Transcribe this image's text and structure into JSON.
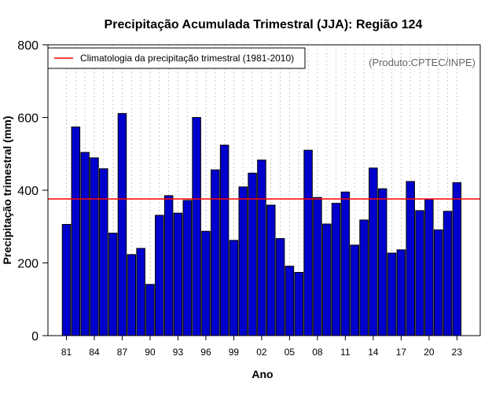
{
  "chart_data": {
    "type": "bar",
    "title": "Precipitação Acumulada Trimestral (JJA): Região 124",
    "xlabel": "Ano",
    "ylabel": "Precipitação trimestral (mm)",
    "ylim": [
      0,
      800
    ],
    "yticks": [
      0,
      200,
      400,
      600,
      800
    ],
    "grid": "vertical-dotted",
    "legend_position": "top-left",
    "legend_label": "Climatologia da precipitação trimestral (1981-2010)",
    "credit": "(Produto:CPTEC/INPE)",
    "climatology": 376,
    "xtick_labels": [
      "81",
      "84",
      "87",
      "90",
      "93",
      "96",
      "99",
      "02",
      "05",
      "08",
      "11",
      "14",
      "17",
      "20",
      "23"
    ],
    "categories": [
      "1981",
      "1982",
      "1983",
      "1984",
      "1985",
      "1986",
      "1987",
      "1988",
      "1989",
      "1990",
      "1991",
      "1992",
      "1993",
      "1994",
      "1995",
      "1996",
      "1997",
      "1998",
      "1999",
      "2000",
      "2001",
      "2002",
      "2003",
      "2004",
      "2005",
      "2006",
      "2007",
      "2008",
      "2009",
      "2010",
      "2011",
      "2012",
      "2013",
      "2014",
      "2015",
      "2016",
      "2017",
      "2018",
      "2019",
      "2020",
      "2021",
      "2022",
      "2023"
    ],
    "values": [
      306,
      574,
      504,
      489,
      459,
      282,
      611,
      223,
      240,
      141,
      331,
      385,
      337,
      372,
      600,
      287,
      456,
      524,
      262,
      409,
      447,
      483,
      359,
      267,
      191,
      174,
      510,
      380,
      307,
      364,
      395,
      249,
      318,
      461,
      404,
      227,
      236,
      424,
      344,
      376,
      291,
      342,
      421
    ],
    "colors": {
      "bar_fill": "#0000cc",
      "bar_stroke": "#000000",
      "climatology_line": "#ff0000",
      "grid": "#c8c8c8"
    }
  }
}
